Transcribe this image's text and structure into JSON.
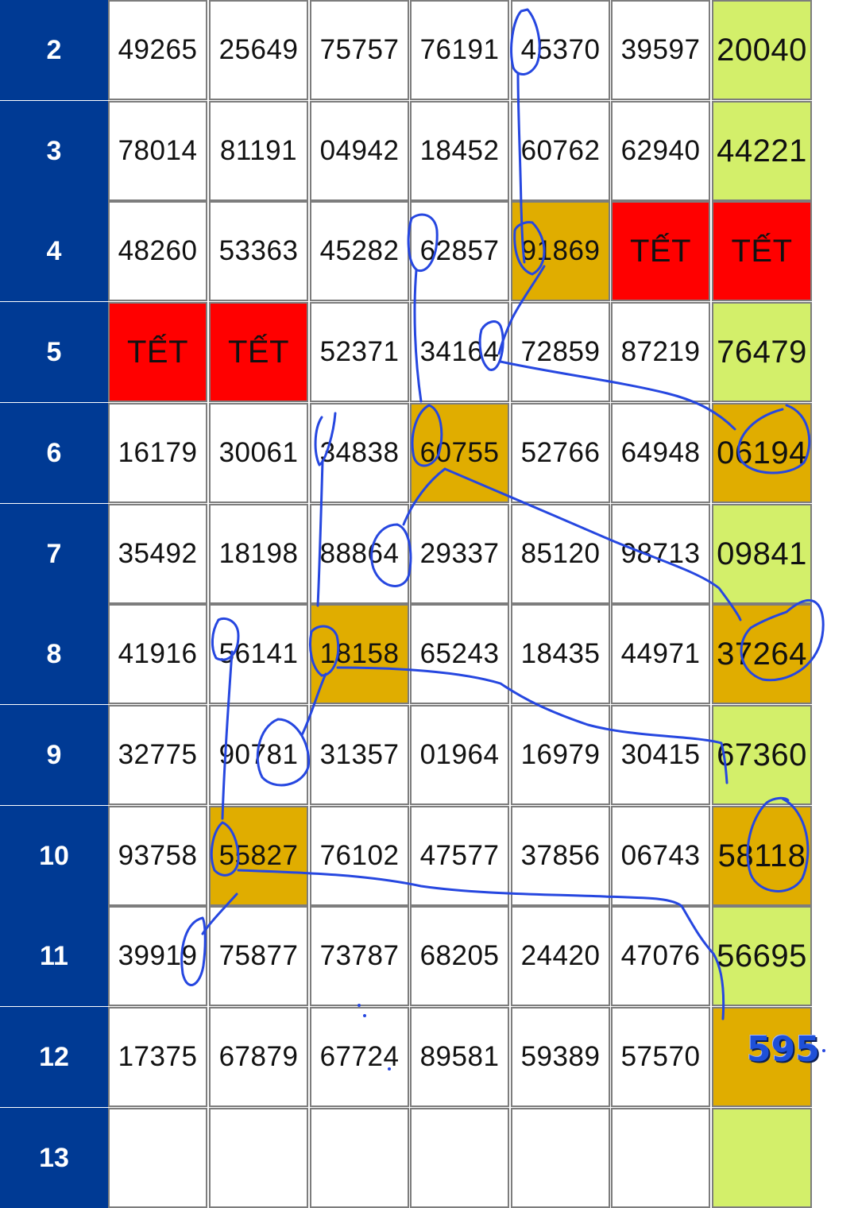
{
  "rows": [
    {
      "label": "2",
      "cells": [
        "49265",
        "25649",
        "75757",
        "76191",
        "45370",
        "39597",
        "20040"
      ],
      "styles": [
        "white",
        "white",
        "white",
        "white",
        "white",
        "white",
        "green"
      ]
    },
    {
      "label": "3",
      "cells": [
        "78014",
        "81191",
        "04942",
        "18452",
        "60762",
        "62940",
        "44221"
      ],
      "styles": [
        "white",
        "white",
        "white",
        "white",
        "white",
        "white",
        "green"
      ]
    },
    {
      "label": "4",
      "cells": [
        "48260",
        "53363",
        "45282",
        "62857",
        "91869",
        "TẾT",
        "TẾT"
      ],
      "styles": [
        "white",
        "white",
        "white",
        "white",
        "hl",
        "tet",
        "tet"
      ]
    },
    {
      "label": "5",
      "cells": [
        "TẾT",
        "TẾT",
        "52371",
        "34164",
        "72859",
        "87219",
        "76479"
      ],
      "styles": [
        "tet",
        "tet",
        "white",
        "white",
        "white",
        "white",
        "green"
      ]
    },
    {
      "label": "6",
      "cells": [
        "16179",
        "30061",
        "34838",
        "60755",
        "52766",
        "64948",
        "06194"
      ],
      "styles": [
        "white",
        "white",
        "white",
        "hl",
        "white",
        "white",
        "hl"
      ]
    },
    {
      "label": "7",
      "cells": [
        "35492",
        "18198",
        "88864",
        "29337",
        "85120",
        "98713",
        "09841"
      ],
      "styles": [
        "white",
        "white",
        "white",
        "white",
        "white",
        "white",
        "green"
      ]
    },
    {
      "label": "8",
      "cells": [
        "41916",
        "56141",
        "18158",
        "65243",
        "18435",
        "44971",
        "37264"
      ],
      "styles": [
        "white",
        "white",
        "hl",
        "white",
        "white",
        "white",
        "hl"
      ]
    },
    {
      "label": "9",
      "cells": [
        "32775",
        "90781",
        "31357",
        "01964",
        "16979",
        "30415",
        "67360"
      ],
      "styles": [
        "white",
        "white",
        "white",
        "white",
        "white",
        "white",
        "green"
      ]
    },
    {
      "label": "10",
      "cells": [
        "93758",
        "55827",
        "76102",
        "47577",
        "37856",
        "06743",
        "58118"
      ],
      "styles": [
        "white",
        "hl",
        "white",
        "white",
        "white",
        "white",
        "hl"
      ]
    },
    {
      "label": "11",
      "cells": [
        "39919",
        "75877",
        "73787",
        "68205",
        "24420",
        "47076",
        "56695"
      ],
      "styles": [
        "white",
        "white",
        "white",
        "white",
        "white",
        "white",
        "green"
      ]
    },
    {
      "label": "12",
      "cells": [
        "17375",
        "67879",
        "67724",
        "89581",
        "59389",
        "57570",
        ""
      ],
      "styles": [
        "white",
        "white",
        "white",
        "white",
        "white",
        "white",
        "hl"
      ]
    },
    {
      "label": "13",
      "cells": [
        "",
        "",
        "",
        "",
        "",
        "",
        ""
      ],
      "styles": [
        "white",
        "white",
        "white",
        "white",
        "white",
        "white",
        "green"
      ]
    }
  ],
  "overlay_number": "595",
  "colors": {
    "header_blue": "#003a94",
    "tet_red": "#ff0000",
    "highlight_gold": "#e0ad00",
    "last_column_green": "#d3ef6a",
    "pen_blue": "#2647e0"
  }
}
